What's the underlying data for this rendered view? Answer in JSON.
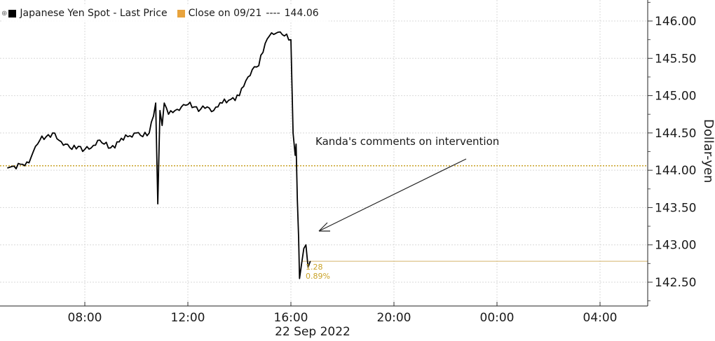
{
  "chart_data": {
    "type": "line",
    "legend": {
      "price_label": "Japanese Yen Spot - Last Price",
      "close_label": "Close on 09/21",
      "close_dashes": "----",
      "close_value": "144.06"
    },
    "colors": {
      "price": "#000000",
      "close": "#d4a017",
      "grid": "#d9d9d9"
    },
    "ylabel": "Dollar-yen",
    "y_ticks": [
      "146.00",
      "145.50",
      "145.00",
      "144.50",
      "144.00",
      "143.50",
      "143.00",
      "142.50"
    ],
    "ylim": [
      142.2,
      146.3
    ],
    "x_ticks": [
      "08:00",
      "12:00",
      "16:00",
      "20:00",
      "00:00",
      "04:00"
    ],
    "date_label": "22 Sep 2022",
    "annotation": "Kanda's comments on intervention",
    "change_labels": [
      "1.28",
      "0.89%"
    ],
    "reference_close": 144.06,
    "last_price": 142.78,
    "series": [
      {
        "x": [
          "05:00",
          "05:10",
          "05:20",
          "05:30",
          "05:40",
          "05:50",
          "06:00",
          "06:15",
          "06:30",
          "06:45",
          "07:00",
          "07:15",
          "07:30",
          "07:45",
          "08:00",
          "08:15",
          "08:30",
          "08:45",
          "09:00",
          "09:20",
          "09:40",
          "10:00",
          "10:15",
          "10:30",
          "10:45",
          "10:50",
          "10:55",
          "11:00",
          "11:05",
          "11:15",
          "11:30",
          "11:45",
          "12:00",
          "12:15",
          "12:30",
          "12:45",
          "13:00",
          "13:20",
          "13:40",
          "14:00",
          "14:15",
          "14:30",
          "14:45",
          "15:00",
          "15:10",
          "15:20",
          "15:30",
          "15:45",
          "16:00",
          "16:05",
          "16:10",
          "16:12",
          "16:15",
          "16:18",
          "16:20",
          "16:25",
          "16:30",
          "16:35",
          "16:40",
          "16:45"
        ],
        "values": [
          144.03,
          144.05,
          144.02,
          144.08,
          144.06,
          144.1,
          144.25,
          144.4,
          144.45,
          144.5,
          144.4,
          144.35,
          144.28,
          144.32,
          144.28,
          144.3,
          144.4,
          144.35,
          144.3,
          144.38,
          144.45,
          144.5,
          144.45,
          144.5,
          144.9,
          143.55,
          144.8,
          144.6,
          144.9,
          144.75,
          144.8,
          144.85,
          144.88,
          144.85,
          144.82,
          144.85,
          144.8,
          144.9,
          144.95,
          145.0,
          145.2,
          145.35,
          145.4,
          145.7,
          145.8,
          145.82,
          145.85,
          145.8,
          145.75,
          144.5,
          144.2,
          144.35,
          143.6,
          143.1,
          142.55,
          142.75,
          142.95,
          143.0,
          142.7,
          142.78
        ]
      }
    ]
  }
}
